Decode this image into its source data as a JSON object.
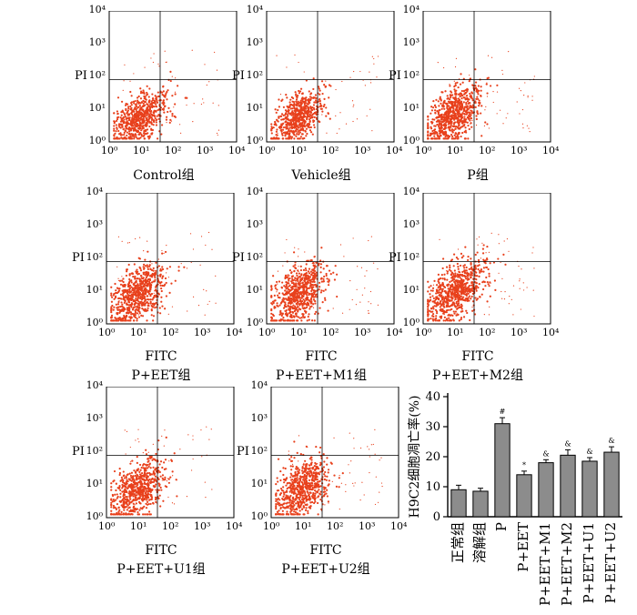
{
  "chart_data": [
    {
      "type": "scatter",
      "kind": "flow-cytometry",
      "id": "control",
      "ylabel": "PI",
      "xlabel": "",
      "caption": "Control组",
      "xticks": [
        "10⁰",
        "10¹",
        "10²",
        "10³",
        "10⁴"
      ],
      "yticks": [
        "10⁰",
        "10¹",
        "10²",
        "10³",
        "10⁴"
      ],
      "gate": {
        "x": 1.6,
        "y": 1.9
      },
      "cloud": {
        "cx": 1.0,
        "cy": 0.75,
        "sx": 0.42,
        "sy": 0.35,
        "n": 700
      }
    },
    {
      "type": "scatter",
      "kind": "flow-cytometry",
      "id": "vehicle",
      "ylabel": "PI",
      "xlabel": "",
      "caption": "Vehicle组",
      "xticks": [
        "10⁰",
        "10¹",
        "10²",
        "10³",
        "10⁴"
      ],
      "yticks": [
        "10⁰",
        "10¹",
        "10²",
        "10³",
        "10⁴"
      ],
      "gate": {
        "x": 1.6,
        "y": 1.9
      },
      "cloud": {
        "cx": 1.0,
        "cy": 0.75,
        "sx": 0.4,
        "sy": 0.35,
        "n": 650
      }
    },
    {
      "type": "scatter",
      "kind": "flow-cytometry",
      "id": "p",
      "ylabel": "PI",
      "xlabel": "",
      "caption": "P组",
      "xticks": [
        "10⁰",
        "10¹",
        "10²",
        "10³",
        "10⁴"
      ],
      "yticks": [
        "10⁰",
        "10¹",
        "10²",
        "10³",
        "10⁴"
      ],
      "gate": {
        "x": 1.6,
        "y": 1.9
      },
      "cloud": {
        "cx": 0.95,
        "cy": 0.8,
        "sx": 0.45,
        "sy": 0.4,
        "n": 800
      }
    },
    {
      "type": "scatter",
      "kind": "flow-cytometry",
      "id": "p-eet",
      "ylabel": "PI",
      "xlabel": "FITC",
      "caption": "P+EET组",
      "xticks": [
        "10⁰",
        "10¹",
        "10²",
        "10³",
        "10⁴"
      ],
      "yticks": [
        "10⁰",
        "10¹",
        "10²",
        "10³",
        "10⁴"
      ],
      "gate": {
        "x": 1.6,
        "y": 1.9
      },
      "cloud": {
        "cx": 1.0,
        "cy": 0.9,
        "sx": 0.45,
        "sy": 0.42,
        "n": 750
      }
    },
    {
      "type": "scatter",
      "kind": "flow-cytometry",
      "id": "p-eet-m1",
      "ylabel": "PI",
      "xlabel": "FITC",
      "caption": "P+EET+M1组",
      "xticks": [
        "10⁰",
        "10¹",
        "10²",
        "10³",
        "10⁴"
      ],
      "yticks": [
        "10⁰",
        "10¹",
        "10²",
        "10³",
        "10⁴"
      ],
      "gate": {
        "x": 1.6,
        "y": 1.9
      },
      "cloud": {
        "cx": 1.0,
        "cy": 0.9,
        "sx": 0.45,
        "sy": 0.42,
        "n": 750
      }
    },
    {
      "type": "scatter",
      "kind": "flow-cytometry",
      "id": "p-eet-m2",
      "ylabel": "PI",
      "xlabel": "FITC",
      "caption": "P+EET+M2组",
      "xticks": [
        "10⁰",
        "10¹",
        "10²",
        "10³",
        "10⁴"
      ],
      "yticks": [
        "10⁰",
        "10¹",
        "10²",
        "10³",
        "10⁴"
      ],
      "gate": {
        "x": 1.6,
        "y": 1.9
      },
      "cloud": {
        "cx": 1.0,
        "cy": 1.0,
        "sx": 0.48,
        "sy": 0.42,
        "n": 800
      }
    },
    {
      "type": "scatter",
      "kind": "flow-cytometry",
      "id": "p-eet-u1",
      "ylabel": "PI",
      "xlabel": "FITC",
      "caption": "P+EET+U1组",
      "xticks": [
        "10⁰",
        "10¹",
        "10²",
        "10³",
        "10⁴"
      ],
      "yticks": [
        "10⁰",
        "10¹",
        "10²",
        "10³",
        "10⁴"
      ],
      "gate": {
        "x": 1.6,
        "y": 1.9
      },
      "cloud": {
        "cx": 1.0,
        "cy": 0.85,
        "sx": 0.42,
        "sy": 0.4,
        "n": 700
      }
    },
    {
      "type": "scatter",
      "kind": "flow-cytometry",
      "id": "p-eet-u2",
      "ylabel": "PI",
      "xlabel": "FITC",
      "caption": "P+EET+U2组",
      "xticks": [
        "10⁰",
        "10¹",
        "10²",
        "10³",
        "10⁴"
      ],
      "yticks": [
        "10⁰",
        "10¹",
        "10²",
        "10³",
        "10⁴"
      ],
      "gate": {
        "x": 1.6,
        "y": 1.9
      },
      "cloud": {
        "cx": 1.0,
        "cy": 0.9,
        "sx": 0.42,
        "sy": 0.42,
        "n": 720
      }
    },
    {
      "type": "bar",
      "id": "apoptosis-rate",
      "ylabel": "H9C2细胞凋亡率(%)",
      "categories": [
        "正常组",
        "溶解组",
        "P",
        "P+EET",
        "P+EET+M1",
        "P+EET+M2",
        "P+EET+U1",
        "P+EET+U2"
      ],
      "values": [
        9,
        8.5,
        31,
        14,
        18,
        20.5,
        18.5,
        21.5
      ],
      "errors": [
        1.5,
        1,
        2,
        1.2,
        1,
        1.8,
        1.2,
        1.8
      ],
      "markers": [
        "",
        "",
        "#",
        "*",
        "&",
        "&",
        "&",
        "&"
      ],
      "yticks": [
        "0",
        "10",
        "20",
        "30",
        "40"
      ],
      "ylim": [
        0,
        40
      ],
      "colors": {
        "bar": "#8c8c8c"
      }
    }
  ],
  "colors": {
    "dots": "#e8401c",
    "gate": "#000000"
  }
}
